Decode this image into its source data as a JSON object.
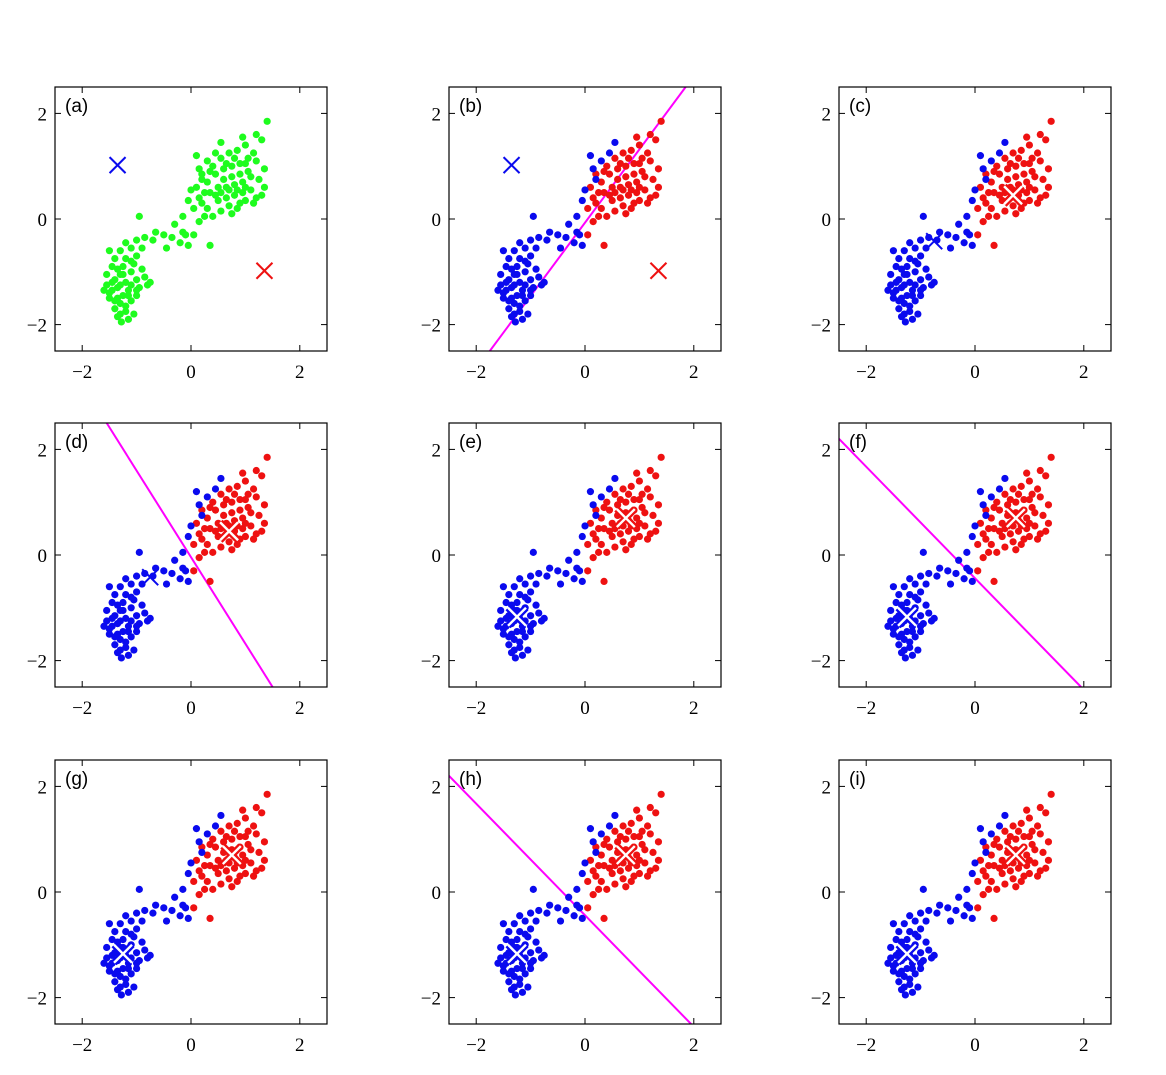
{
  "figure": {
    "style": {
      "green": "#1efc1e",
      "blue": "#0a0aee",
      "red": "#ee1111",
      "boundary": "#ff00ff",
      "centroid_outline": "#ffffff"
    }
  },
  "chart_data": [
    {
      "type": "scatter",
      "label": "(a)",
      "xlim": [
        -2.5,
        2.5
      ],
      "ylim": [
        -2.5,
        2.5
      ],
      "xticks": [
        -2,
        0,
        2
      ],
      "yticks": [
        -2,
        0,
        2
      ],
      "grid": false,
      "coloring": "none",
      "centroids": [
        {
          "x": -1.35,
          "y": 1.02,
          "color": "blue",
          "style": "plain"
        },
        {
          "x": 1.35,
          "y": -0.98,
          "color": "red",
          "style": "plain"
        }
      ],
      "boundary": null
    },
    {
      "type": "scatter",
      "label": "(b)",
      "xlim": [
        -2.5,
        2.5
      ],
      "ylim": [
        -2.5,
        2.5
      ],
      "xticks": [
        -2,
        0,
        2
      ],
      "yticks": [
        -2,
        0,
        2
      ],
      "grid": false,
      "coloring": "assign",
      "centroids": [
        {
          "x": -1.35,
          "y": 1.02,
          "color": "blue",
          "style": "plain"
        },
        {
          "x": 1.35,
          "y": -0.98,
          "color": "red",
          "style": "plain"
        }
      ],
      "boundary": {
        "from": [
          -1.75,
          -2.5
        ],
        "to": [
          1.85,
          2.5
        ]
      }
    },
    {
      "type": "scatter",
      "label": "(c)",
      "xlim": [
        -2.5,
        2.5
      ],
      "ylim": [
        -2.5,
        2.5
      ],
      "xticks": [
        -2,
        0,
        2
      ],
      "yticks": [
        -2,
        0,
        2
      ],
      "grid": false,
      "coloring": "assign",
      "centroids": [
        {
          "x": -0.75,
          "y": -0.42,
          "color": "blue",
          "style": "plain"
        },
        {
          "x": 0.7,
          "y": 0.45,
          "color": "red",
          "style": "outlined"
        }
      ],
      "boundary": null
    },
    {
      "type": "scatter",
      "label": "(d)",
      "xlim": [
        -2.5,
        2.5
      ],
      "ylim": [
        -2.5,
        2.5
      ],
      "xticks": [
        -2,
        0,
        2
      ],
      "yticks": [
        -2,
        0,
        2
      ],
      "grid": false,
      "coloring": "assign",
      "centroids": [
        {
          "x": -0.75,
          "y": -0.42,
          "color": "blue",
          "style": "plain"
        },
        {
          "x": 0.7,
          "y": 0.45,
          "color": "red",
          "style": "outlined"
        }
      ],
      "boundary": {
        "from": [
          -1.55,
          2.5
        ],
        "to": [
          1.5,
          -2.5
        ]
      }
    },
    {
      "type": "scatter",
      "label": "(e)",
      "xlim": [
        -2.5,
        2.5
      ],
      "ylim": [
        -2.5,
        2.5
      ],
      "xticks": [
        -2,
        0,
        2
      ],
      "yticks": [
        -2,
        0,
        2
      ],
      "grid": false,
      "coloring": "assign",
      "centroids": [
        {
          "x": -1.25,
          "y": -1.17,
          "color": "blue",
          "style": "outlined"
        },
        {
          "x": 0.75,
          "y": 0.7,
          "color": "red",
          "style": "outlined"
        }
      ],
      "boundary": null
    },
    {
      "type": "scatter",
      "label": "(f)",
      "xlim": [
        -2.5,
        2.5
      ],
      "ylim": [
        -2.5,
        2.5
      ],
      "xticks": [
        -2,
        0,
        2
      ],
      "yticks": [
        -2,
        0,
        2
      ],
      "grid": false,
      "coloring": "assign",
      "centroids": [
        {
          "x": -1.25,
          "y": -1.17,
          "color": "blue",
          "style": "outlined"
        },
        {
          "x": 0.75,
          "y": 0.7,
          "color": "red",
          "style": "outlined"
        }
      ],
      "boundary": {
        "from": [
          -2.5,
          2.2
        ],
        "to": [
          1.95,
          -2.5
        ]
      }
    },
    {
      "type": "scatter",
      "label": "(g)",
      "xlim": [
        -2.5,
        2.5
      ],
      "ylim": [
        -2.5,
        2.5
      ],
      "xticks": [
        -2,
        0,
        2
      ],
      "yticks": [
        -2,
        0,
        2
      ],
      "grid": false,
      "coloring": "assign",
      "centroids": [
        {
          "x": -1.25,
          "y": -1.17,
          "color": "blue",
          "style": "outlined"
        },
        {
          "x": 0.75,
          "y": 0.7,
          "color": "red",
          "style": "outlined"
        }
      ],
      "boundary": null
    },
    {
      "type": "scatter",
      "label": "(h)",
      "xlim": [
        -2.5,
        2.5
      ],
      "ylim": [
        -2.5,
        2.5
      ],
      "xticks": [
        -2,
        0,
        2
      ],
      "yticks": [
        -2,
        0,
        2
      ],
      "grid": false,
      "coloring": "assign",
      "centroids": [
        {
          "x": -1.25,
          "y": -1.17,
          "color": "blue",
          "style": "outlined"
        },
        {
          "x": 0.75,
          "y": 0.7,
          "color": "red",
          "style": "outlined"
        }
      ],
      "boundary": {
        "from": [
          -2.5,
          2.2
        ],
        "to": [
          1.95,
          -2.5
        ]
      }
    },
    {
      "type": "scatter",
      "label": "(i)",
      "xlim": [
        -2.5,
        2.5
      ],
      "ylim": [
        -2.5,
        2.5
      ],
      "xticks": [
        -2,
        0,
        2
      ],
      "yticks": [
        -2,
        0,
        2
      ],
      "grid": false,
      "coloring": "assign",
      "centroids": [
        {
          "x": -1.25,
          "y": -1.17,
          "color": "blue",
          "style": "outlined"
        },
        {
          "x": 0.75,
          "y": 0.7,
          "color": "red",
          "style": "outlined"
        }
      ],
      "boundary": null
    }
  ],
  "points": [
    [
      -1.35,
      -1.85,
      "b"
    ],
    [
      -1.28,
      -1.95,
      "b"
    ],
    [
      -1.15,
      -1.9,
      "b"
    ],
    [
      -1.4,
      -1.7,
      "b"
    ],
    [
      -1.2,
      -1.75,
      "b"
    ],
    [
      -1.05,
      -1.8,
      "b"
    ],
    [
      -1.3,
      -1.6,
      "b"
    ],
    [
      -1.5,
      -1.5,
      "b"
    ],
    [
      -1.1,
      -1.55,
      "b"
    ],
    [
      -1.45,
      -1.35,
      "b"
    ],
    [
      -1.25,
      -1.45,
      "b"
    ],
    [
      -1.0,
      -1.45,
      "b"
    ],
    [
      -1.55,
      -1.25,
      "b"
    ],
    [
      -1.35,
      -1.3,
      "b"
    ],
    [
      -1.15,
      -1.35,
      "b"
    ],
    [
      -0.95,
      -1.3,
      "b"
    ],
    [
      -1.4,
      -1.15,
      "b"
    ],
    [
      -1.2,
      -1.2,
      "b"
    ],
    [
      -1.0,
      -1.15,
      "b"
    ],
    [
      -1.55,
      -1.05,
      "b"
    ],
    [
      -1.3,
      -1.05,
      "b"
    ],
    [
      -1.1,
      -1.0,
      "b"
    ],
    [
      -0.85,
      -1.1,
      "b"
    ],
    [
      -1.45,
      -0.9,
      "b"
    ],
    [
      -1.25,
      -0.9,
      "b"
    ],
    [
      -1.05,
      -0.85,
      "b"
    ],
    [
      -1.4,
      -0.75,
      "b"
    ],
    [
      -1.2,
      -0.75,
      "b"
    ],
    [
      -1.0,
      -0.7,
      "b"
    ],
    [
      -1.5,
      -0.6,
      "b"
    ],
    [
      -1.3,
      -0.6,
      "b"
    ],
    [
      -1.1,
      -0.55,
      "b"
    ],
    [
      -0.9,
      -0.55,
      "b"
    ],
    [
      -1.2,
      -0.45,
      "b"
    ],
    [
      -1.35,
      -1.5,
      "b"
    ],
    [
      -1.2,
      -1.65,
      "b"
    ],
    [
      -1.5,
      -1.4,
      "b"
    ],
    [
      -1.3,
      -1.25,
      "b"
    ],
    [
      -1.1,
      -1.25,
      "b"
    ],
    [
      -1.25,
      -1.05,
      "b"
    ],
    [
      -1.45,
      -1.2,
      "b"
    ],
    [
      -1.35,
      -0.95,
      "b"
    ],
    [
      -0.9,
      -0.95,
      "b"
    ],
    [
      -1.0,
      -1.35,
      "b"
    ],
    [
      -0.8,
      -1.25,
      "b"
    ],
    [
      -1.15,
      -1.45,
      "b"
    ],
    [
      -1.4,
      -1.55,
      "b"
    ],
    [
      -1.3,
      -1.8,
      "b"
    ],
    [
      -1.1,
      -0.8,
      "b"
    ],
    [
      -1.6,
      -1.35,
      "b"
    ],
    [
      -0.75,
      -1.2,
      "b"
    ],
    [
      -0.7,
      -0.4,
      "b"
    ],
    [
      -0.45,
      -0.55,
      "b"
    ],
    [
      -0.85,
      -0.35,
      "b"
    ],
    [
      -0.5,
      -0.3,
      "b"
    ],
    [
      -0.65,
      -0.25,
      "b"
    ],
    [
      -1.0,
      -0.4,
      "b"
    ],
    [
      -0.95,
      0.05,
      "b"
    ],
    [
      -0.3,
      -0.1,
      "b"
    ],
    [
      -0.15,
      -0.25,
      "b"
    ],
    [
      -0.05,
      -0.5,
      "b"
    ],
    [
      0.35,
      -0.5,
      "r"
    ],
    [
      -0.35,
      -0.35,
      "b"
    ],
    [
      -0.2,
      -0.45,
      "b"
    ],
    [
      0.2,
      0.3,
      "r"
    ],
    [
      0.35,
      0.5,
      "r"
    ],
    [
      0.5,
      0.35,
      "r"
    ],
    [
      0.65,
      0.6,
      "r"
    ],
    [
      0.8,
      0.45,
      "r"
    ],
    [
      0.95,
      0.7,
      "r"
    ],
    [
      1.1,
      0.55,
      "r"
    ],
    [
      0.3,
      0.7,
      "r"
    ],
    [
      0.45,
      0.85,
      "r"
    ],
    [
      0.6,
      0.95,
      "r"
    ],
    [
      0.75,
      0.8,
      "r"
    ],
    [
      0.9,
      1.05,
      "r"
    ],
    [
      1.05,
      0.9,
      "r"
    ],
    [
      1.2,
      1.1,
      "r"
    ],
    [
      0.55,
      1.15,
      "r"
    ],
    [
      0.7,
      1.25,
      "r"
    ],
    [
      0.85,
      1.3,
      "r"
    ],
    [
      1.0,
      1.4,
      "r"
    ],
    [
      1.15,
      1.25,
      "r"
    ],
    [
      1.3,
      1.5,
      "r"
    ],
    [
      1.4,
      1.85,
      "r"
    ],
    [
      1.2,
      1.6,
      "r"
    ],
    [
      0.95,
      1.55,
      "r"
    ],
    [
      0.4,
      1.0,
      "r"
    ],
    [
      0.25,
      0.5,
      "r"
    ],
    [
      0.1,
      0.6,
      "r"
    ],
    [
      0.3,
      0.2,
      "r"
    ],
    [
      0.55,
      0.15,
      "r"
    ],
    [
      0.7,
      0.25,
      "r"
    ],
    [
      0.85,
      0.2,
      "r"
    ],
    [
      1.0,
      0.35,
      "r"
    ],
    [
      1.15,
      0.3,
      "r"
    ],
    [
      1.25,
      0.75,
      "r"
    ],
    [
      1.3,
      0.45,
      "r"
    ],
    [
      1.1,
      0.8,
      "r"
    ],
    [
      0.65,
      0.4,
      "r"
    ],
    [
      0.8,
      0.65,
      "r"
    ],
    [
      0.95,
      0.5,
      "r"
    ],
    [
      0.5,
      0.6,
      "r"
    ],
    [
      0.6,
      0.75,
      "r"
    ],
    [
      0.75,
      1.0,
      "r"
    ],
    [
      0.9,
      0.85,
      "r"
    ],
    [
      1.05,
      1.15,
      "r"
    ],
    [
      0.45,
      0.45,
      "r"
    ],
    [
      0.35,
      0.9,
      "r"
    ],
    [
      0.2,
      0.85,
      "r"
    ],
    [
      0.15,
      0.4,
      "r"
    ],
    [
      0.4,
      0.05,
      "r"
    ],
    [
      1.35,
      0.95,
      "r"
    ],
    [
      1.35,
      0.6,
      "r"
    ],
    [
      1.0,
      1.05,
      "r"
    ],
    [
      0.8,
      1.15,
      "r"
    ],
    [
      0.65,
      1.05,
      "r"
    ],
    [
      0.55,
      0.5,
      "r"
    ],
    [
      0.7,
      0.55,
      "r"
    ],
    [
      0.85,
      0.55,
      "r"
    ],
    [
      1.0,
      0.6,
      "r"
    ],
    [
      0.9,
      0.3,
      "r"
    ],
    [
      0.75,
      0.1,
      "r"
    ],
    [
      1.2,
      0.4,
      "r"
    ],
    [
      0.15,
      -0.05,
      "r"
    ],
    [
      0.05,
      -0.3,
      "r"
    ],
    [
      -0.1,
      -0.3,
      "b"
    ],
    [
      0.25,
      0.05,
      "r"
    ],
    [
      0.05,
      0.2,
      "r"
    ],
    [
      -0.15,
      0.05,
      "b"
    ],
    [
      -0.05,
      0.35,
      "b"
    ],
    [
      0.0,
      0.55,
      "b"
    ],
    [
      0.15,
      0.95,
      "b"
    ],
    [
      0.3,
      1.1,
      "b"
    ],
    [
      0.45,
      1.25,
      "b"
    ],
    [
      0.2,
      0.75,
      "b"
    ],
    [
      0.1,
      1.2,
      "b"
    ],
    [
      0.55,
      1.45,
      "b"
    ]
  ]
}
